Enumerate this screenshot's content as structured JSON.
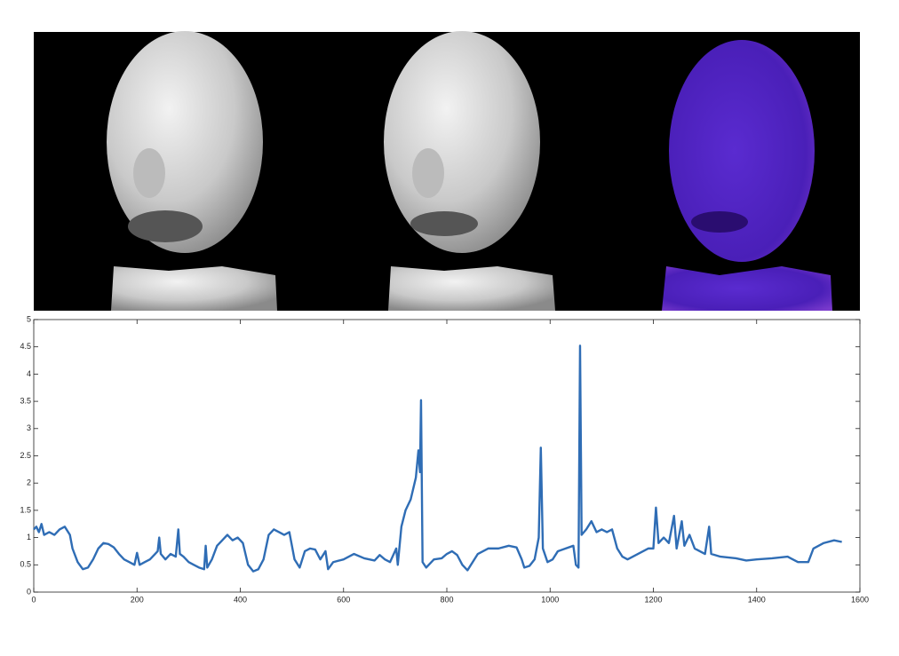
{
  "chart_data": {
    "type": "line",
    "x": [
      0,
      5,
      10,
      15,
      20,
      30,
      40,
      50,
      60,
      70,
      75,
      85,
      95,
      105,
      115,
      125,
      135,
      145,
      155,
      165,
      175,
      185,
      195,
      200,
      205,
      215,
      225,
      235,
      240,
      243,
      246,
      255,
      265,
      275,
      280,
      283,
      290,
      300,
      310,
      320,
      330,
      333,
      336,
      345,
      355,
      365,
      375,
      385,
      395,
      405,
      415,
      425,
      435,
      445,
      455,
      465,
      475,
      485,
      495,
      505,
      515,
      525,
      535,
      545,
      555,
      565,
      570,
      580,
      600,
      620,
      640,
      660,
      670,
      680,
      690,
      702,
      705,
      712,
      720,
      730,
      740,
      745,
      748,
      750,
      753,
      760,
      775,
      790,
      800,
      810,
      820,
      830,
      840,
      850,
      860,
      880,
      900,
      920,
      935,
      945,
      950,
      960,
      970,
      978,
      982,
      986,
      995,
      1005,
      1015,
      1030,
      1045,
      1050,
      1055,
      1058,
      1061,
      1070,
      1080,
      1090,
      1100,
      1110,
      1120,
      1130,
      1140,
      1150,
      1170,
      1190,
      1200,
      1205,
      1210,
      1220,
      1230,
      1240,
      1245,
      1255,
      1260,
      1270,
      1280,
      1300,
      1308,
      1312,
      1330,
      1360,
      1380,
      1400,
      1430,
      1460,
      1480,
      1500,
      1510,
      1530,
      1550,
      1565
    ],
    "series": [
      {
        "color": "#2f6db5",
        "values": [
          1.15,
          1.2,
          1.1,
          1.25,
          1.05,
          1.1,
          1.05,
          1.15,
          1.2,
          1.05,
          0.8,
          0.55,
          0.42,
          0.45,
          0.6,
          0.8,
          0.9,
          0.88,
          0.82,
          0.7,
          0.6,
          0.55,
          0.5,
          0.72,
          0.5,
          0.55,
          0.6,
          0.7,
          0.75,
          1.0,
          0.7,
          0.6,
          0.7,
          0.65,
          1.15,
          0.7,
          0.65,
          0.55,
          0.5,
          0.45,
          0.42,
          0.85,
          0.45,
          0.6,
          0.85,
          0.95,
          1.05,
          0.95,
          1.0,
          0.9,
          0.5,
          0.38,
          0.42,
          0.6,
          1.05,
          1.15,
          1.1,
          1.05,
          1.1,
          0.6,
          0.45,
          0.75,
          0.8,
          0.78,
          0.6,
          0.75,
          0.42,
          0.55,
          0.6,
          0.7,
          0.62,
          0.58,
          0.68,
          0.6,
          0.55,
          0.8,
          0.5,
          1.2,
          1.5,
          1.7,
          2.1,
          2.6,
          2.2,
          3.52,
          0.55,
          0.45,
          0.6,
          0.62,
          0.7,
          0.75,
          0.68,
          0.5,
          0.4,
          0.55,
          0.7,
          0.8,
          0.8,
          0.85,
          0.82,
          0.6,
          0.45,
          0.48,
          0.6,
          1.0,
          2.65,
          0.8,
          0.55,
          0.6,
          0.75,
          0.8,
          0.85,
          0.5,
          0.45,
          4.52,
          1.05,
          1.15,
          1.3,
          1.1,
          1.15,
          1.1,
          1.15,
          0.8,
          0.65,
          0.6,
          0.7,
          0.8,
          0.8,
          1.55,
          0.9,
          1.0,
          0.9,
          1.4,
          0.8,
          1.3,
          0.85,
          1.05,
          0.8,
          0.7,
          1.2,
          0.7,
          0.65,
          0.62,
          0.58,
          0.6,
          0.62,
          0.65,
          0.55,
          0.55,
          0.8,
          0.9,
          0.95,
          0.92
        ]
      }
    ],
    "xlim": [
      0,
      1600
    ],
    "xticks": [
      0,
      200,
      400,
      600,
      800,
      1000,
      1200,
      1400,
      1600
    ],
    "ylim": [
      0,
      5
    ],
    "yticks": [
      0,
      0.5,
      1,
      1.5,
      2,
      2.5,
      3,
      3.5,
      4,
      4.5,
      5
    ]
  }
}
